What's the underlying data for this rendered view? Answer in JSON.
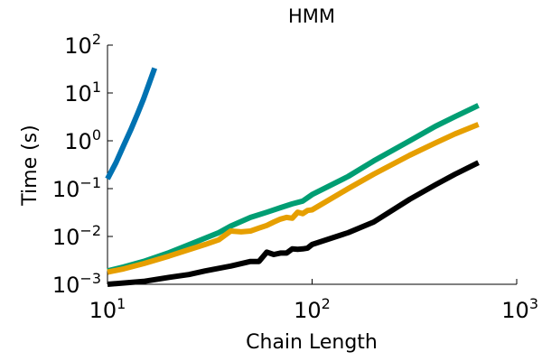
{
  "chart_data": {
    "type": "line",
    "title": "HMM",
    "xlabel": "Chain Length",
    "ylabel": "Time (s)",
    "xscale": "log",
    "yscale": "log",
    "xlim": [
      10,
      1000
    ],
    "ylim": [
      0.001,
      100
    ],
    "grid": false,
    "legend": "none",
    "x_ticks": [
      {
        "value": 10,
        "base": "10",
        "exp": "1"
      },
      {
        "value": 100,
        "base": "10",
        "exp": "2"
      },
      {
        "value": 1000,
        "base": "10",
        "exp": "3"
      }
    ],
    "y_ticks": [
      {
        "value": 0.001,
        "base": "10",
        "exp": "−3"
      },
      {
        "value": 0.01,
        "base": "10",
        "exp": "−2"
      },
      {
        "value": 0.1,
        "base": "10",
        "exp": "−1"
      },
      {
        "value": 1,
        "base": "10",
        "exp": "0"
      },
      {
        "value": 10,
        "base": "10",
        "exp": "1"
      },
      {
        "value": 100,
        "base": "10",
        "exp": "2"
      }
    ],
    "series": [
      {
        "color": "#0072b2",
        "x": [
          10,
          11,
          12,
          13,
          14,
          15,
          16,
          17
        ],
        "y": [
          0.16,
          0.35,
          0.8,
          1.7,
          3.6,
          7.5,
          16,
          33
        ]
      },
      {
        "color": "#009e73",
        "x": [
          10,
          12,
          15,
          20,
          25,
          30,
          35,
          40,
          50,
          60,
          70,
          80,
          90,
          100,
          150,
          200,
          300,
          400,
          500,
          650
        ],
        "y": [
          0.0019,
          0.0023,
          0.003,
          0.0046,
          0.0067,
          0.0092,
          0.012,
          0.0165,
          0.025,
          0.032,
          0.04,
          0.048,
          0.055,
          0.075,
          0.18,
          0.38,
          1.0,
          2.0,
          3.2,
          5.5
        ]
      },
      {
        "color": "#e69f00",
        "x": [
          10,
          12,
          15,
          20,
          25,
          30,
          35,
          40,
          45,
          50,
          55,
          60,
          65,
          70,
          75,
          80,
          85,
          90,
          95,
          100,
          150,
          200,
          300,
          400,
          500,
          650
        ],
        "y": [
          0.0018,
          0.0021,
          0.0027,
          0.0039,
          0.0053,
          0.0068,
          0.0085,
          0.013,
          0.0125,
          0.013,
          0.015,
          0.017,
          0.02,
          0.023,
          0.025,
          0.024,
          0.032,
          0.03,
          0.035,
          0.036,
          0.1,
          0.2,
          0.5,
          0.9,
          1.4,
          2.2
        ]
      },
      {
        "color": "#000000",
        "x": [
          10,
          15,
          20,
          25,
          30,
          40,
          50,
          55,
          60,
          65,
          70,
          75,
          80,
          85,
          90,
          95,
          100,
          150,
          200,
          300,
          400,
          500,
          650
        ],
        "y": [
          0.001,
          0.00115,
          0.0014,
          0.0016,
          0.0019,
          0.0024,
          0.003,
          0.003,
          0.0047,
          0.0042,
          0.0045,
          0.0045,
          0.0055,
          0.0054,
          0.0055,
          0.0057,
          0.0068,
          0.012,
          0.02,
          0.06,
          0.12,
          0.2,
          0.35
        ]
      }
    ]
  }
}
